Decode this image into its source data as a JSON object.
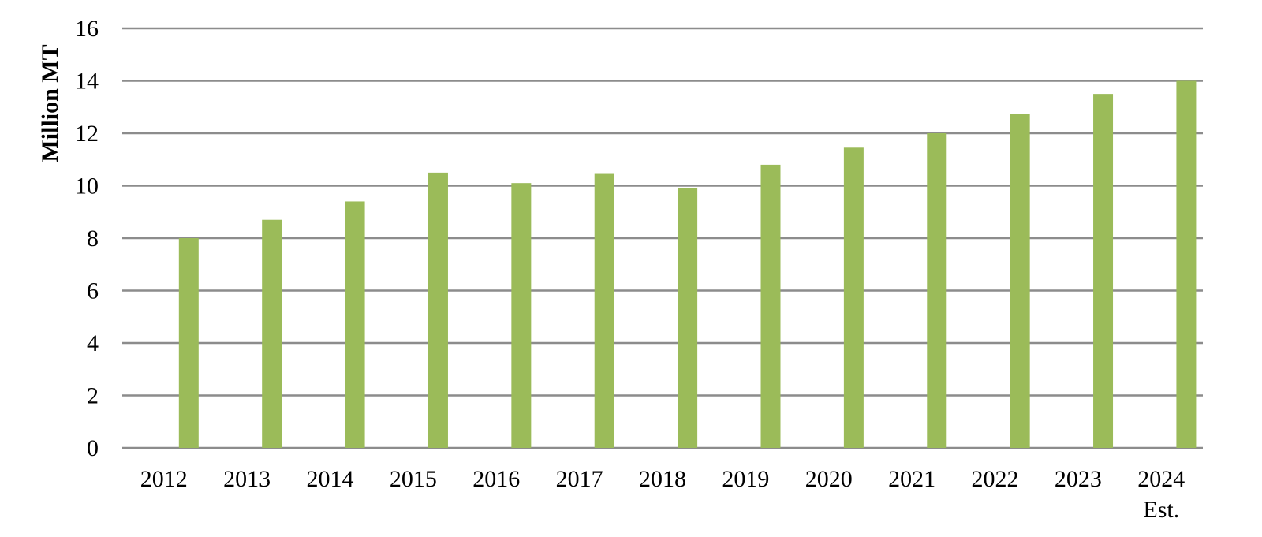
{
  "chart_data": {
    "type": "bar",
    "title": "",
    "xlabel": "",
    "ylabel": "Million MT",
    "ylim": [
      0,
      16
    ],
    "yticks": [
      0,
      2,
      4,
      6,
      8,
      10,
      12,
      14,
      16
    ],
    "grid": true,
    "legend": "none",
    "bar_color": "#9bbb59",
    "grid_color": "#8c8c8c",
    "categories": [
      "2012",
      "2013",
      "2014",
      "2015",
      "2016",
      "2017",
      "2018",
      "2019",
      "2020",
      "2021",
      "2022",
      "2023",
      "2024"
    ],
    "category_sublabels": [
      "",
      "",
      "",
      "",
      "",
      "",
      "",
      "",
      "",
      "",
      "",
      "",
      "Est."
    ],
    "values": [
      8.0,
      8.7,
      9.4,
      10.5,
      10.1,
      10.45,
      9.9,
      10.8,
      11.45,
      12.0,
      12.75,
      13.5,
      14.0
    ]
  }
}
